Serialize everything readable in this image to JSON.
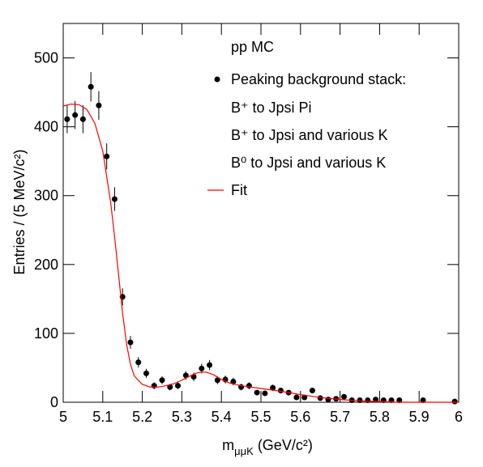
{
  "chart_data": {
    "type": "scatter",
    "annotation": "pp MC",
    "x_label": {
      "main": "m",
      "sub": "μμK",
      "rest": " (GeV/c²)"
    },
    "y_label": "Entries / (5 MeV/c²)",
    "xlim": [
      5,
      6
    ],
    "xticks": [
      5,
      5.1,
      5.2,
      5.3,
      5.4,
      5.5,
      5.6,
      5.7,
      5.8,
      5.9,
      6
    ],
    "ylim": [
      0,
      550
    ],
    "yticks": [
      0,
      100,
      200,
      300,
      400,
      500
    ],
    "legend_notes": [
      "B⁺ to Jpsi Pi",
      "B⁺ to Jpsi and various K",
      "B⁰ to Jpsi and various K"
    ],
    "series": [
      {
        "name": "Peaking background stack:",
        "kind": "points",
        "color": "#000000",
        "x": [
          5.01,
          5.03,
          5.05,
          5.07,
          5.09,
          5.11,
          5.13,
          5.15,
          5.17,
          5.19,
          5.21,
          5.23,
          5.25,
          5.27,
          5.29,
          5.31,
          5.33,
          5.35,
          5.37,
          5.39,
          5.41,
          5.43,
          5.45,
          5.47,
          5.49,
          5.51,
          5.53,
          5.55,
          5.57,
          5.59,
          5.61,
          5.63,
          5.65,
          5.67,
          5.69,
          5.71,
          5.73,
          5.75,
          5.77,
          5.79,
          5.81,
          5.83,
          5.85,
          5.91,
          5.99
        ],
        "values": [
          411,
          417,
          411,
          458,
          431,
          357,
          295,
          153,
          87,
          58,
          42,
          24,
          32,
          22,
          24,
          39,
          37,
          49,
          54,
          32,
          33,
          30,
          22,
          24,
          14,
          13,
          21,
          17,
          14,
          7,
          7,
          17,
          6,
          4,
          5,
          8,
          3,
          3,
          3,
          4,
          3,
          3,
          3,
          3,
          1
        ],
        "errors": [
          20.3,
          20.4,
          20.3,
          21.4,
          20.8,
          18.9,
          17.2,
          12.4,
          9.3,
          7.6,
          6.5,
          4.9,
          5.7,
          4.7,
          4.9,
          6.2,
          6.1,
          7,
          7.3,
          5.7,
          5.7,
          5.5,
          4.7,
          4.9,
          3.7,
          3.6,
          4.6,
          4.1,
          3.7,
          2.6,
          2.6,
          4.1,
          2.4,
          2,
          2.2,
          2.8,
          1.7,
          1.7,
          1.7,
          2,
          1.7,
          1.7,
          1.7,
          1.7,
          1
        ]
      },
      {
        "name": "Fit",
        "kind": "line",
        "color": "#ff0000",
        "x": [
          5,
          5.02,
          5.04,
          5.06,
          5.08,
          5.1,
          5.12,
          5.13,
          5.14,
          5.15,
          5.16,
          5.17,
          5.18,
          5.2,
          5.22,
          5.24,
          5.26,
          5.28,
          5.3,
          5.32,
          5.34,
          5.36,
          5.38,
          5.4,
          5.42,
          5.45,
          5.5,
          5.55,
          5.6,
          5.65,
          5.7,
          5.75,
          5.8,
          5.85,
          6
        ],
        "values": [
          430,
          433,
          432,
          425,
          405,
          365,
          290,
          240,
          185,
          130,
          85,
          55,
          38,
          26,
          22,
          22,
          24,
          27,
          32,
          38,
          43,
          44,
          40,
          33,
          28,
          24,
          20,
          16,
          11,
          7,
          4,
          2,
          1,
          0,
          0
        ]
      }
    ]
  }
}
